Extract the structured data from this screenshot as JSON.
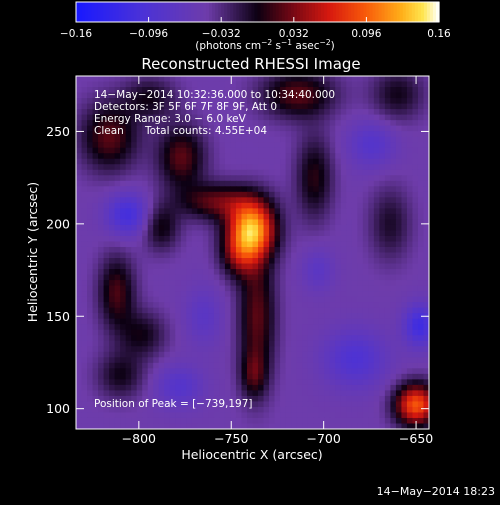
{
  "chart_data": {
    "type": "heatmap",
    "title": "Reconstructed RHESSI Image",
    "xlabel": "Heliocentric X (arcsec)",
    "ylabel": "Heliocentric Y (arcsec)",
    "xlim": [
      -834,
      -643
    ],
    "ylim": [
      89,
      280
    ],
    "x_ticks": [
      -800,
      -750,
      -700,
      -650
    ],
    "x_tick_labels": [
      "−800",
      "−750",
      "−700",
      "−650"
    ],
    "y_ticks": [
      100,
      150,
      200,
      250
    ],
    "y_tick_labels": [
      "100",
      "150",
      "200",
      "250"
    ],
    "colorbar": {
      "range": [
        -0.16,
        0.16
      ],
      "ticks": [
        -0.16,
        -0.096,
        -0.032,
        0.032,
        0.096,
        0.16
      ],
      "tick_labels": [
        "−0.16",
        "−0.096",
        "−0.032",
        "0.032",
        "0.096",
        "0.16"
      ],
      "units_base": "(photons cm",
      "units_exp1": "−2",
      "units_mid1": " s",
      "units_exp2": "−1",
      "units_mid2": " asec",
      "units_exp3": "−2",
      "units_end": ")"
    },
    "annotations": {
      "time_range": "14−May−2014 10:32:36.000 to 10:34:40.000",
      "detectors": "Detectors: 3F 5F 6F 7F 8F 9F, Att 0",
      "energy": "Energy Range: 3.0 − 6.0 keV",
      "method": "Clean",
      "counts": "Total counts: 4.55E+04",
      "peak": "Position of Peak = [−739,197]"
    },
    "peak": {
      "x": -739,
      "y": 197,
      "value": 0.16
    },
    "sources": [
      {
        "x": -739,
        "y": 197,
        "sx": 9,
        "sy": 11,
        "amp": 0.17
      },
      {
        "x": -746,
        "y": 183,
        "sx": 7,
        "sy": 9,
        "amp": 0.06
      },
      {
        "x": -758,
        "y": 212,
        "sx": 14,
        "sy": 7,
        "amp": 0.07
      },
      {
        "x": -736,
        "y": 150,
        "sx": 7,
        "sy": 25,
        "amp": 0.07
      },
      {
        "x": -738,
        "y": 118,
        "sx": 5,
        "sy": 9,
        "amp": 0.045
      },
      {
        "x": -777,
        "y": 236,
        "sx": 9,
        "sy": 12,
        "amp": 0.07
      },
      {
        "x": -816,
        "y": 247,
        "sx": 11,
        "sy": 13,
        "amp": 0.07
      },
      {
        "x": -794,
        "y": 268,
        "sx": 10,
        "sy": 8,
        "amp": 0.045
      },
      {
        "x": -714,
        "y": 270,
        "sx": 14,
        "sy": 9,
        "amp": 0.07
      },
      {
        "x": -705,
        "y": 225,
        "sx": 7,
        "sy": 16,
        "amp": 0.055
      },
      {
        "x": -812,
        "y": 163,
        "sx": 7,
        "sy": 14,
        "amp": 0.065
      },
      {
        "x": -798,
        "y": 140,
        "sx": 9,
        "sy": 9,
        "amp": 0.045
      },
      {
        "x": -788,
        "y": 198,
        "sx": 7,
        "sy": 9,
        "amp": 0.05
      },
      {
        "x": -660,
        "y": 270,
        "sx": 10,
        "sy": 10,
        "amp": 0.045
      },
      {
        "x": -650,
        "y": 102,
        "sx": 8,
        "sy": 8,
        "amp": 0.14
      },
      {
        "x": -810,
        "y": 118,
        "sx": 9,
        "sy": 9,
        "amp": 0.045
      },
      {
        "x": -664,
        "y": 200,
        "sx": 8,
        "sy": 14,
        "amp": 0.04
      }
    ],
    "sinks": [
      {
        "x": -806,
        "y": 205,
        "sx": 8,
        "sy": 8,
        "amp": 0.065
      },
      {
        "x": -683,
        "y": 127,
        "sx": 12,
        "sy": 11,
        "amp": 0.05
      },
      {
        "x": -648,
        "y": 145,
        "sx": 6,
        "sy": 8,
        "amp": 0.07
      },
      {
        "x": -778,
        "y": 112,
        "sx": 9,
        "sy": 8,
        "amp": 0.04
      },
      {
        "x": -674,
        "y": 243,
        "sx": 9,
        "sy": 9,
        "amp": 0.04
      },
      {
        "x": -765,
        "y": 150,
        "sx": 7,
        "sy": 11,
        "amp": 0.03
      },
      {
        "x": -703,
        "y": 175,
        "sx": 6,
        "sy": 8,
        "amp": 0.03
      }
    ],
    "background": -0.047
  },
  "footer": {
    "timestamp": "14−May−2014 18:23"
  }
}
